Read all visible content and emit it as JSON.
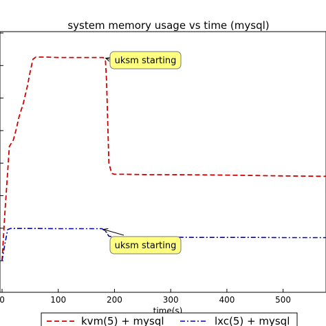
{
  "chart_data": {
    "type": "line",
    "title": "system memory usage vs time (mysql)",
    "xlabel": "time(s)",
    "ylabel": "",
    "xlim": [
      0,
      580
    ],
    "ylim": [
      0,
      100
    ],
    "xticks": [
      0,
      100,
      200,
      300,
      400,
      500
    ],
    "tick_labels": [
      "0",
      "100",
      "200",
      "300",
      "400",
      "500"
    ],
    "grid": false,
    "legend_placement": "bottom-center",
    "series": [
      {
        "name": "kvm(5) + mysql",
        "color": "#cc0000",
        "style": "dashed",
        "x": [
          0,
          5,
          10,
          13,
          20,
          25,
          30,
          38,
          45,
          50,
          55,
          60,
          80,
          100,
          120,
          150,
          180,
          184,
          186,
          190,
          195,
          200,
          220,
          260,
          300,
          360,
          400,
          450,
          500,
          580
        ],
        "y": [
          0,
          23,
          43,
          55,
          58,
          63,
          69,
          76,
          84,
          91,
          97,
          98,
          98,
          97.8,
          97.8,
          97.8,
          97.8,
          96,
          86,
          47,
          42,
          41.6,
          41.6,
          41.4,
          41.4,
          41.3,
          41.2,
          41,
          40.8,
          40.6
        ]
      },
      {
        "name": "lxc(5) + mysql",
        "color": "#0000aa",
        "style": "dashdot",
        "x": [
          0,
          5,
          10,
          15,
          30,
          60,
          100,
          130,
          160,
          178,
          185,
          190,
          200,
          250,
          300,
          350,
          400,
          450,
          500,
          580
        ],
        "y": [
          0,
          8,
          15,
          15.5,
          15.5,
          15.5,
          15.4,
          15.4,
          15.4,
          15.4,
          13.8,
          11.8,
          11.4,
          11.3,
          11.3,
          11.2,
          11.2,
          11.2,
          11.1,
          11.1
        ]
      }
    ],
    "annotations": [
      {
        "text": "uksm starting",
        "target": [
          182,
          97.8
        ]
      },
      {
        "text": "uksm starting",
        "target": [
          178,
          15.4
        ]
      }
    ]
  }
}
